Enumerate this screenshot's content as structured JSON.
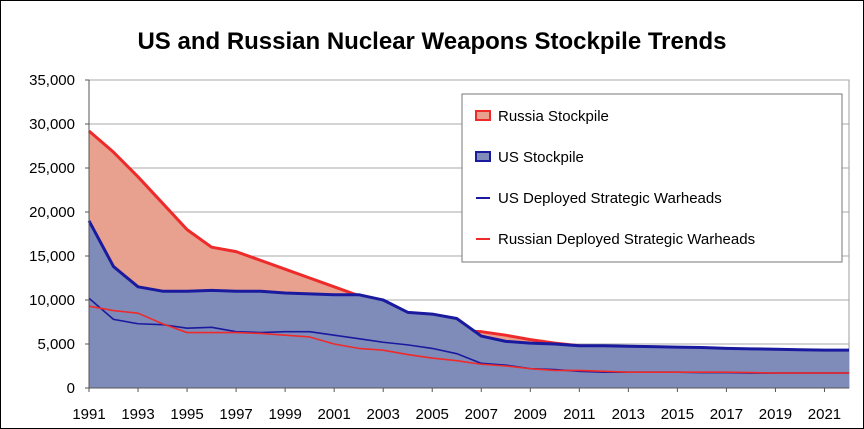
{
  "chart_data": {
    "type": "area",
    "title": "US and Russian Nuclear Weapons Stockpile Trends",
    "xlabel": "",
    "ylabel": "",
    "xlim": [
      1991,
      2022
    ],
    "ylim": [
      0,
      35000
    ],
    "x_ticks": [
      1991,
      1993,
      1995,
      1997,
      1999,
      2001,
      2003,
      2005,
      2007,
      2009,
      2011,
      2013,
      2015,
      2017,
      2019,
      2021
    ],
    "y_ticks": [
      0,
      5000,
      10000,
      15000,
      20000,
      25000,
      30000,
      35000
    ],
    "y_tick_labels": [
      "0",
      "5,000",
      "10,000",
      "15,000",
      "20,000",
      "25,000",
      "30,000",
      "35,000"
    ],
    "grid": "horizontal",
    "legend_position": "top-right",
    "series": [
      {
        "name": "Russia Stockpile",
        "kind": "area",
        "color": "#ee2a2a",
        "fill": "#e8a08f",
        "x": [
          1991,
          1992,
          1993,
          1994,
          1995,
          1996,
          1997,
          1998,
          1999,
          2000,
          2001,
          2002,
          2003,
          2004,
          2005,
          2006,
          2007,
          2008,
          2009,
          2010,
          2011,
          2012,
          2013,
          2014,
          2015,
          2016,
          2017,
          2018,
          2019,
          2020,
          2021,
          2022
        ],
        "values": [
          29200,
          26800,
          24000,
          21000,
          18000,
          16000,
          15500,
          14500,
          13500,
          12500,
          11500,
          10500,
          9000,
          8000,
          7000,
          6500,
          6400,
          6000,
          5500,
          5100,
          4800,
          4700,
          4650,
          4600,
          4550,
          4500,
          4450,
          4400,
          4350,
          4300,
          4250,
          4200
        ]
      },
      {
        "name": "US Stockpile",
        "kind": "area",
        "color": "#1a1a9e",
        "fill": "#7f8cba",
        "x": [
          1991,
          1992,
          1993,
          1994,
          1995,
          1996,
          1997,
          1998,
          1999,
          2000,
          2001,
          2002,
          2003,
          2004,
          2005,
          2006,
          2007,
          2008,
          2009,
          2010,
          2011,
          2012,
          2013,
          2014,
          2015,
          2016,
          2017,
          2018,
          2019,
          2020,
          2021,
          2022
        ],
        "values": [
          19000,
          13800,
          11500,
          11000,
          11000,
          11100,
          11000,
          11000,
          10800,
          10700,
          10600,
          10600,
          10000,
          8600,
          8400,
          7900,
          5900,
          5300,
          5100,
          5000,
          4800,
          4800,
          4750,
          4700,
          4650,
          4600,
          4500,
          4450,
          4400,
          4350,
          4300,
          4300
        ]
      },
      {
        "name": "US Deployed Strategic Warheads",
        "kind": "line",
        "color": "#1a1a9e",
        "x": [
          1991,
          1992,
          1993,
          1994,
          1995,
          1996,
          1997,
          1998,
          1999,
          2000,
          2001,
          2002,
          2003,
          2004,
          2005,
          2006,
          2007,
          2008,
          2009,
          2010,
          2011,
          2012,
          2013,
          2014,
          2015,
          2016,
          2017,
          2018,
          2019,
          2020,
          2021,
          2022
        ],
        "values": [
          10200,
          7800,
          7300,
          7200,
          6800,
          6900,
          6400,
          6300,
          6400,
          6400,
          6000,
          5600,
          5200,
          4900,
          4500,
          3900,
          2800,
          2600,
          2200,
          2100,
          1900,
          1800,
          1800,
          1800,
          1800,
          1750,
          1750,
          1700,
          1700,
          1700,
          1700,
          1700
        ]
      },
      {
        "name": "Russian Deployed Strategic Warheads",
        "kind": "line",
        "color": "#ee2a2a",
        "x": [
          1991,
          1992,
          1993,
          1994,
          1995,
          1996,
          1997,
          1998,
          1999,
          2000,
          2001,
          2002,
          2003,
          2004,
          2005,
          2006,
          2007,
          2008,
          2009,
          2010,
          2011,
          2012,
          2013,
          2014,
          2015,
          2016,
          2017,
          2018,
          2019,
          2020,
          2021,
          2022
        ],
        "values": [
          9300,
          8800,
          8500,
          7300,
          6300,
          6300,
          6300,
          6200,
          6000,
          5800,
          5000,
          4500,
          4300,
          3800,
          3400,
          3100,
          2700,
          2500,
          2200,
          2000,
          2000,
          1900,
          1800,
          1800,
          1800,
          1800,
          1800,
          1750,
          1700,
          1700,
          1700,
          1700
        ]
      }
    ]
  }
}
